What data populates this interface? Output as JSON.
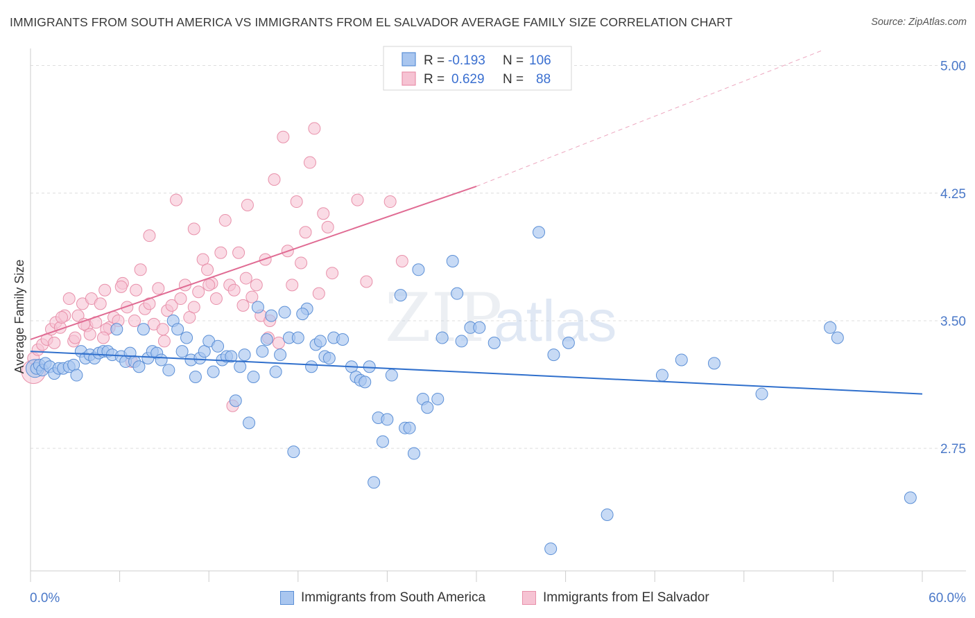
{
  "title": "IMMIGRANTS FROM SOUTH AMERICA VS IMMIGRANTS FROM EL SALVADOR AVERAGE FAMILY SIZE CORRELATION CHART",
  "source": "Source: ZipAtlas.com",
  "watermark": {
    "zip": "ZIP",
    "atlas": "atlas"
  },
  "colors": {
    "blue_fill": "#a9c6ef",
    "blue_stroke": "#5b8fd6",
    "blue_line": "#2f6fcc",
    "pink_fill": "#f6c3d3",
    "pink_stroke": "#e890aa",
    "pink_line": "#e06b93",
    "grid": "#dddddd",
    "tick_text": "#4a78c8"
  },
  "legend": {
    "rows": [
      {
        "r_label": "R = ",
        "r_value": "-0.193",
        "n_label": "N = ",
        "n_value": "106"
      },
      {
        "r_label": "R = ",
        "r_value": "0.629",
        "n_label": "N = ",
        "n_value": "88"
      }
    ]
  },
  "chart_data": {
    "type": "scatter",
    "title": "IMMIGRANTS FROM SOUTH AMERICA VS IMMIGRANTS FROM EL SALVADOR AVERAGE FAMILY SIZE CORRELATION CHART",
    "xlabel": "",
    "ylabel": "Average Family Size",
    "xlim": [
      0,
      60
    ],
    "ylim": [
      2.03,
      5.1
    ],
    "x_tick_labels": [
      "0.0%",
      "60.0%"
    ],
    "y_ticks": [
      2.75,
      3.5,
      4.25,
      5.0
    ],
    "y_tick_labels": [
      "2.75",
      "3.50",
      "4.25",
      "5.00"
    ],
    "grid": true,
    "legend_position": "top-center",
    "series": [
      {
        "name": "Immigrants from South America",
        "color": "blue",
        "R": -0.193,
        "N": 106,
        "trend": {
          "x0": 0,
          "y0": 3.32,
          "x1": 60,
          "y1": 3.07
        },
        "points": [
          [
            0.4,
            3.22
          ],
          [
            0.6,
            3.24
          ],
          [
            0.8,
            3.21
          ],
          [
            1.0,
            3.25
          ],
          [
            1.3,
            3.23
          ],
          [
            1.6,
            3.19
          ],
          [
            1.9,
            3.22
          ],
          [
            2.2,
            3.22
          ],
          [
            2.6,
            3.23
          ],
          [
            2.9,
            3.24
          ],
          [
            3.1,
            3.18
          ],
          [
            3.4,
            3.32
          ],
          [
            3.7,
            3.28
          ],
          [
            4.0,
            3.3
          ],
          [
            4.3,
            3.28
          ],
          [
            4.6,
            3.31
          ],
          [
            4.9,
            3.32
          ],
          [
            5.2,
            3.32
          ],
          [
            5.5,
            3.3
          ],
          [
            5.8,
            3.45
          ],
          [
            6.1,
            3.29
          ],
          [
            6.4,
            3.26
          ],
          [
            6.7,
            3.31
          ],
          [
            7.0,
            3.26
          ],
          [
            7.3,
            3.23
          ],
          [
            7.6,
            3.45
          ],
          [
            7.9,
            3.28
          ],
          [
            8.2,
            3.32
          ],
          [
            8.5,
            3.31
          ],
          [
            8.8,
            3.27
          ],
          [
            9.3,
            3.21
          ],
          [
            9.6,
            3.5
          ],
          [
            9.9,
            3.45
          ],
          [
            10.2,
            3.32
          ],
          [
            10.5,
            3.4
          ],
          [
            10.8,
            3.27
          ],
          [
            11.1,
            3.17
          ],
          [
            11.4,
            3.28
          ],
          [
            11.7,
            3.32
          ],
          [
            12.0,
            3.38
          ],
          [
            12.3,
            3.2
          ],
          [
            12.6,
            3.35
          ],
          [
            12.9,
            3.27
          ],
          [
            13.2,
            3.29
          ],
          [
            13.5,
            3.29
          ],
          [
            13.8,
            3.03
          ],
          [
            14.1,
            3.23
          ],
          [
            14.4,
            3.3
          ],
          [
            14.7,
            2.9
          ],
          [
            15.0,
            3.17
          ],
          [
            15.3,
            3.58
          ],
          [
            15.6,
            3.32
          ],
          [
            15.9,
            3.39
          ],
          [
            16.2,
            3.53
          ],
          [
            16.5,
            3.2
          ],
          [
            16.8,
            3.3
          ],
          [
            17.1,
            3.55
          ],
          [
            17.4,
            3.4
          ],
          [
            17.7,
            2.73
          ],
          [
            18.0,
            3.4
          ],
          [
            18.6,
            3.57
          ],
          [
            18.9,
            3.23
          ],
          [
            19.2,
            3.36
          ],
          [
            19.5,
            3.38
          ],
          [
            19.8,
            3.29
          ],
          [
            20.1,
            3.28
          ],
          [
            20.4,
            3.4
          ],
          [
            21.0,
            3.39
          ],
          [
            21.6,
            3.23
          ],
          [
            21.9,
            3.17
          ],
          [
            22.2,
            3.15
          ],
          [
            22.5,
            3.14
          ],
          [
            22.8,
            3.23
          ],
          [
            23.1,
            2.55
          ],
          [
            23.4,
            2.93
          ],
          [
            23.7,
            2.79
          ],
          [
            24.0,
            2.92
          ],
          [
            24.3,
            3.18
          ],
          [
            24.9,
            3.65
          ],
          [
            25.2,
            2.87
          ],
          [
            25.5,
            2.87
          ],
          [
            25.8,
            2.72
          ],
          [
            26.1,
            3.8
          ],
          [
            26.4,
            3.04
          ],
          [
            26.7,
            2.99
          ],
          [
            27.4,
            3.04
          ],
          [
            27.7,
            3.4
          ],
          [
            28.4,
            3.85
          ],
          [
            28.7,
            3.66
          ],
          [
            29.0,
            3.38
          ],
          [
            29.6,
            3.46
          ],
          [
            30.2,
            3.46
          ],
          [
            31.2,
            3.37
          ],
          [
            34.2,
            4.02
          ],
          [
            35.2,
            3.3
          ],
          [
            36.2,
            3.37
          ],
          [
            38.8,
            2.36
          ],
          [
            42.5,
            3.18
          ],
          [
            43.8,
            3.27
          ],
          [
            46.0,
            3.25
          ],
          [
            49.2,
            3.07
          ],
          [
            53.8,
            3.46
          ],
          [
            54.3,
            3.4
          ],
          [
            59.2,
            2.46
          ],
          [
            35.0,
            2.16
          ],
          [
            18.3,
            3.54
          ]
        ]
      },
      {
        "name": "Immigrants from El Salvador",
        "color": "pink",
        "R": 0.629,
        "N": 88,
        "trend": {
          "x0": 0,
          "y0": 3.39,
          "x1": 30,
          "y1": 4.29
        },
        "trend_extension": {
          "x0": 30,
          "y0": 4.29,
          "x1": 53.3,
          "y1": 5.09
        },
        "points": [
          [
            0.2,
            3.28
          ],
          [
            0.5,
            3.33
          ],
          [
            0.8,
            3.36
          ],
          [
            1.1,
            3.39
          ],
          [
            1.4,
            3.45
          ],
          [
            1.7,
            3.49
          ],
          [
            2.0,
            3.46
          ],
          [
            2.3,
            3.53
          ],
          [
            2.6,
            3.63
          ],
          [
            2.9,
            3.38
          ],
          [
            3.2,
            3.53
          ],
          [
            3.5,
            3.6
          ],
          [
            3.8,
            3.47
          ],
          [
            4.1,
            3.63
          ],
          [
            4.4,
            3.49
          ],
          [
            4.7,
            3.6
          ],
          [
            5.0,
            3.68
          ],
          [
            5.3,
            3.46
          ],
          [
            5.6,
            3.52
          ],
          [
            5.9,
            3.5
          ],
          [
            6.2,
            3.72
          ],
          [
            6.5,
            3.58
          ],
          [
            6.8,
            3.26
          ],
          [
            7.1,
            3.68
          ],
          [
            7.4,
            3.8
          ],
          [
            7.7,
            3.57
          ],
          [
            8.0,
            4.0
          ],
          [
            8.3,
            3.48
          ],
          [
            8.6,
            3.69
          ],
          [
            8.9,
            3.45
          ],
          [
            9.2,
            3.56
          ],
          [
            9.5,
            3.59
          ],
          [
            9.8,
            4.21
          ],
          [
            10.1,
            3.63
          ],
          [
            10.4,
            3.71
          ],
          [
            10.7,
            3.52
          ],
          [
            11.0,
            4.04
          ],
          [
            11.3,
            3.67
          ],
          [
            11.6,
            3.86
          ],
          [
            11.9,
            3.8
          ],
          [
            12.2,
            3.72
          ],
          [
            12.5,
            3.63
          ],
          [
            12.8,
            3.9
          ],
          [
            13.1,
            4.09
          ],
          [
            13.4,
            3.71
          ],
          [
            13.7,
            3.68
          ],
          [
            14.0,
            3.9
          ],
          [
            14.3,
            3.59
          ],
          [
            14.6,
            4.18
          ],
          [
            14.9,
            3.64
          ],
          [
            15.2,
            3.71
          ],
          [
            15.5,
            3.53
          ],
          [
            15.8,
            3.86
          ],
          [
            16.1,
            3.5
          ],
          [
            16.4,
            4.33
          ],
          [
            16.7,
            3.37
          ],
          [
            17.0,
            4.58
          ],
          [
            17.3,
            3.91
          ],
          [
            17.6,
            3.71
          ],
          [
            17.9,
            4.2
          ],
          [
            18.2,
            3.84
          ],
          [
            18.5,
            4.02
          ],
          [
            18.8,
            4.43
          ],
          [
            19.1,
            4.63
          ],
          [
            19.4,
            3.66
          ],
          [
            19.7,
            4.13
          ],
          [
            20.0,
            4.05
          ],
          [
            20.3,
            3.78
          ],
          [
            22.0,
            4.21
          ],
          [
            22.6,
            3.73
          ],
          [
            24.2,
            4.2
          ],
          [
            25.0,
            3.85
          ],
          [
            13.6,
            3.0
          ],
          [
            9.0,
            3.38
          ],
          [
            5.1,
            3.45
          ],
          [
            6.1,
            3.7
          ],
          [
            7.0,
            3.5
          ],
          [
            3.0,
            3.4
          ],
          [
            4.0,
            3.42
          ],
          [
            1.6,
            3.37
          ],
          [
            2.1,
            3.52
          ],
          [
            3.6,
            3.48
          ],
          [
            4.9,
            3.4
          ],
          [
            8.0,
            3.6
          ],
          [
            11.0,
            3.58
          ],
          [
            12.0,
            3.71
          ],
          [
            14.5,
            3.75
          ],
          [
            16.0,
            3.4
          ]
        ]
      }
    ]
  },
  "bottom_legend": {
    "items": [
      {
        "label": "Immigrants from South America"
      },
      {
        "label": "Immigrants from El Salvador"
      }
    ]
  }
}
